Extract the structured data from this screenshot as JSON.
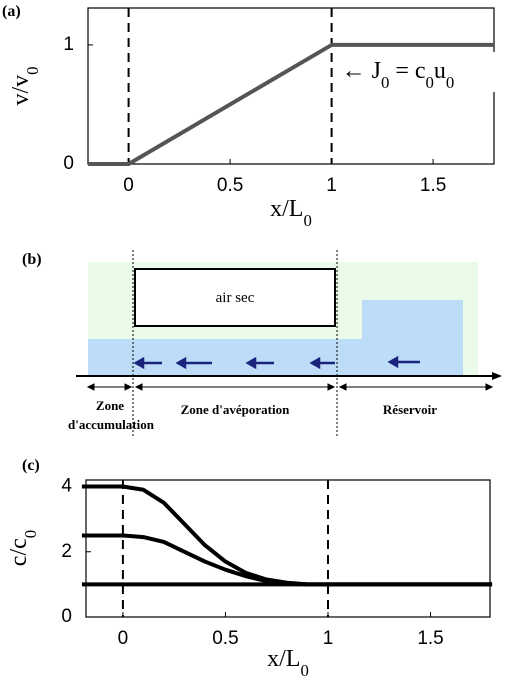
{
  "chart_data": [
    {
      "type": "line",
      "panel_label": "(a)",
      "xlabel": [
        "x/L",
        "0"
      ],
      "ylabel": [
        "v/v",
        "0"
      ],
      "x": [
        -0.2,
        0,
        1,
        1.8
      ],
      "values": [
        0,
        0,
        1,
        1
      ],
      "color": "#555555",
      "xlim": [
        -0.2,
        1.8
      ],
      "ylim": [
        0,
        1.31
      ],
      "xticks": [
        0,
        0.5,
        1,
        1.5
      ],
      "yticks": [
        0,
        1
      ],
      "vlines": [
        0,
        1
      ],
      "annotation": [
        "← J",
        "0",
        " = c",
        "0",
        "u",
        "0"
      ]
    },
    {
      "type": "line",
      "panel_label": "(c)",
      "xlabel": [
        "x/L",
        "0"
      ],
      "ylabel": [
        "c/c",
        "0"
      ],
      "x": [
        -0.2,
        0,
        0.1,
        0.2,
        0.3,
        0.4,
        0.5,
        0.6,
        0.7,
        0.8,
        0.9,
        1,
        1.8
      ],
      "series": [
        {
          "color": "#000000",
          "values": [
            4,
            4,
            3.9,
            3.5,
            2.85,
            2.2,
            1.7,
            1.35,
            1.15,
            1.05,
            1,
            1,
            1
          ]
        },
        {
          "color": "#000000",
          "values": [
            2.5,
            2.5,
            2.45,
            2.3,
            2,
            1.7,
            1.45,
            1.25,
            1.1,
            1.03,
            1,
            1,
            1
          ]
        },
        {
          "color": "#000000",
          "values": [
            1,
            1,
            1,
            1,
            1,
            1,
            1,
            1,
            1,
            1,
            1,
            1,
            1
          ]
        }
      ],
      "xlim": [
        -0.18,
        1.79
      ],
      "ylim": [
        0,
        4.2
      ],
      "xticks": [
        0,
        0.5,
        1,
        1.5
      ],
      "yticks": [
        0,
        2,
        4
      ],
      "vlines": [
        0,
        1
      ]
    }
  ],
  "diagram": {
    "panel_label": "(b)",
    "box_label": "air sec",
    "zones": [
      [
        "Zone",
        "d'accumulation"
      ],
      [
        "Zone d'avéporation"
      ],
      [
        "Réservoir"
      ]
    ]
  }
}
